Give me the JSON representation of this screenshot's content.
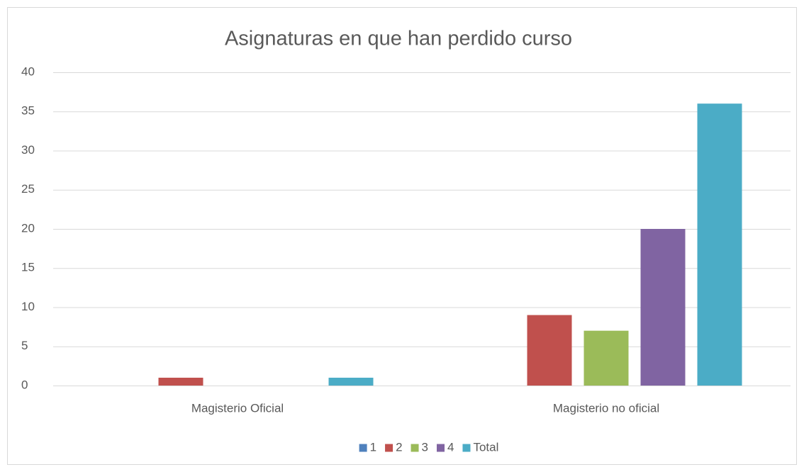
{
  "chart_data": {
    "type": "bar",
    "title": "Asignaturas en que han perdido curso",
    "categories": [
      "Magisterio Oficial",
      "Magisterio no oficial"
    ],
    "series": [
      {
        "name": "1",
        "color": "#4f81bd",
        "values": [
          0,
          0
        ]
      },
      {
        "name": "2",
        "color": "#c0504d",
        "values": [
          1,
          9
        ]
      },
      {
        "name": "3",
        "color": "#9bbb59",
        "values": [
          0,
          7
        ]
      },
      {
        "name": "4",
        "color": "#8064a2",
        "values": [
          0,
          20
        ]
      },
      {
        "name": "Total",
        "color": "#4bacc6",
        "values": [
          1,
          36
        ]
      }
    ],
    "ylim": [
      0,
      40
    ],
    "yticks": [
      0,
      5,
      10,
      15,
      20,
      25,
      30,
      35,
      40
    ],
    "grid": true,
    "legend": "bottom"
  }
}
